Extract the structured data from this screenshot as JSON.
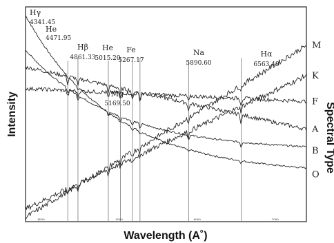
{
  "chart_data": {
    "type": "line",
    "xlabel": "Wavelength (A˚)",
    "ylabel": "Intensity",
    "right_label": "Spectral Type",
    "grid": false,
    "xlim": [
      3800,
      7400
    ],
    "series": [
      {
        "name": "O",
        "shape": "decay",
        "y_start": 0.96,
        "y_end": 0.22
      },
      {
        "name": "B",
        "shape": "decay",
        "y_start": 0.8,
        "y_end": 0.33
      },
      {
        "name": "A",
        "shape": "flat",
        "y_start": 0.72,
        "y_end": 0.43
      },
      {
        "name": "F",
        "shape": "flat",
        "y_start": 0.62,
        "y_end": 0.56
      },
      {
        "name": "K",
        "shape": "rising",
        "y_start": 0.06,
        "y_end": 0.68
      },
      {
        "name": "M",
        "shape": "rising",
        "y_start": 0.02,
        "y_end": 0.82
      }
    ],
    "lines": [
      {
        "label": "Hγ",
        "value": "4341.45",
        "wavelength": 4341.45
      },
      {
        "label": "He",
        "value": "4471.95",
        "wavelength": 4471.95
      },
      {
        "label": "Hβ",
        "value": "4861.33",
        "wavelength": 4861.33
      },
      {
        "label": "He",
        "value": "5015.20",
        "wavelength": 5015.2
      },
      {
        "label": "Mg",
        "value": "5169.50",
        "wavelength": 5169.5
      },
      {
        "label": "Fe",
        "value": "5267.17",
        "wavelength": 5267.17
      },
      {
        "label": "Na",
        "value": "5890.60",
        "wavelength": 5890.6
      },
      {
        "label": "Hα",
        "value": "6563.40",
        "wavelength": 6563.4
      }
    ],
    "tick_labels": [
      "4000",
      "5000",
      "6000",
      "7000"
    ]
  }
}
